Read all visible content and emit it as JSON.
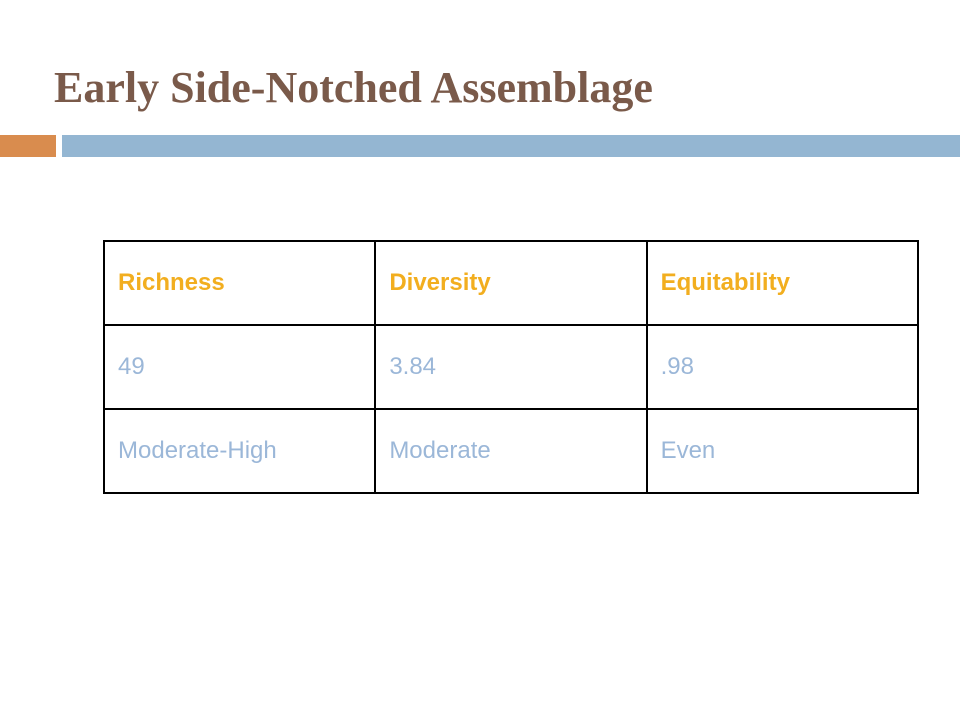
{
  "slide": {
    "title": "Early Side-Notched Assemblage"
  },
  "colors": {
    "title": "#7a5a4a",
    "accent_bar": "#d98c4e",
    "rule_bar": "#94b6d2",
    "header_text": "#f2ae1f",
    "body_text": "#9bb7d8",
    "table_border": "#000000"
  },
  "table": {
    "headers": [
      "Richness",
      "Diversity",
      "Equitability"
    ],
    "rows": [
      [
        "49",
        "3.84",
        ".98"
      ],
      [
        "Moderate-High",
        "Moderate",
        "Even"
      ]
    ]
  }
}
